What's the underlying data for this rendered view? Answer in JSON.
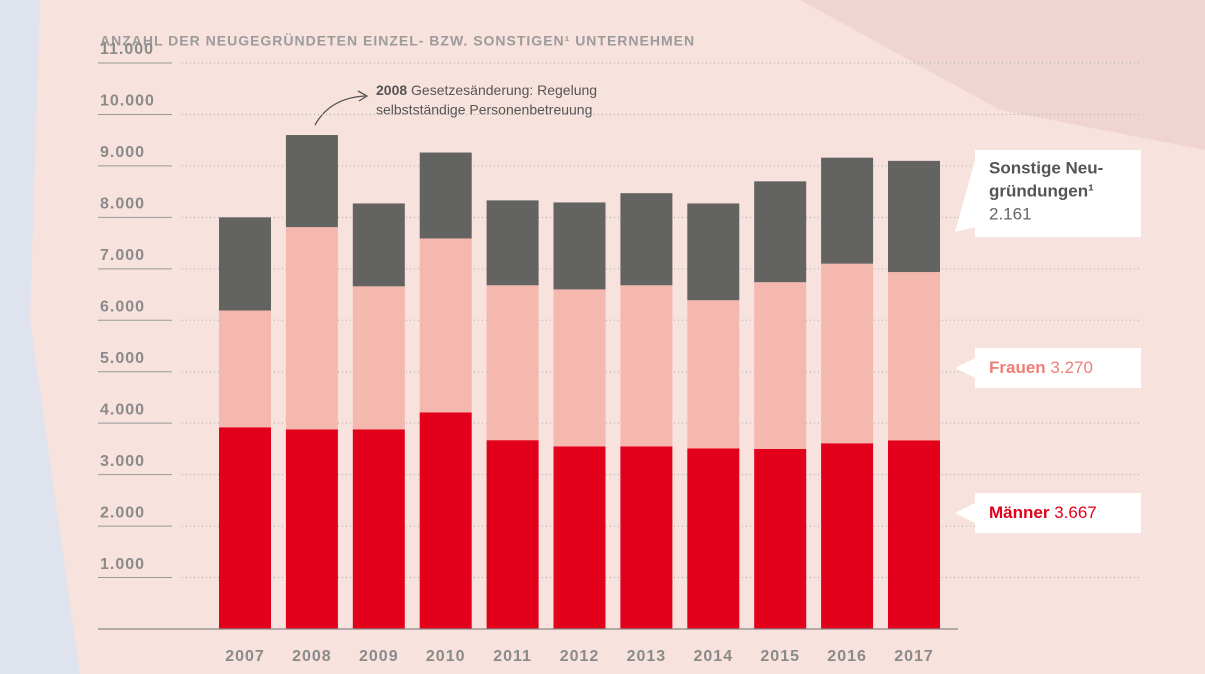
{
  "chart_data": {
    "type": "stacked-bar",
    "title": "ANZAHL DER NEUGEGRÜNDETEN EINZEL- BZW. SONSTIGEN¹ UNTERNEHMEN",
    "annotation": {
      "year": "2008",
      "lines": [
        "Gesetzesänderung: Regelung",
        "selbstständige Personenbetreuung"
      ]
    },
    "categories": [
      "2007",
      "2008",
      "2009",
      "2010",
      "2011",
      "2012",
      "2013",
      "2014",
      "2015",
      "2016",
      "2017"
    ],
    "series": [
      {
        "name": "Männer",
        "color": "#e2001a",
        "label_color": "#e2001a",
        "values": [
          3920,
          3880,
          3880,
          4210,
          3670,
          3550,
          3550,
          3510,
          3500,
          3610,
          3667
        ],
        "value_labels": [
          null,
          null,
          null,
          null,
          null,
          null,
          null,
          null,
          null,
          null,
          "3.667"
        ]
      },
      {
        "name": "Frauen",
        "color": "#f5b8ae",
        "label_color": "#ee7f78",
        "values": [
          2270,
          3930,
          2780,
          3380,
          3010,
          3050,
          3130,
          2880,
          3240,
          3490,
          3270
        ],
        "value_labels": [
          null,
          null,
          null,
          null,
          null,
          null,
          null,
          null,
          null,
          null,
          "3.270"
        ]
      },
      {
        "name_lines": [
          "Sonstige Neu-",
          "gründungen¹"
        ],
        "color": "#636361",
        "label_color": "#555555",
        "values": [
          1810,
          1790,
          1610,
          1670,
          1650,
          1690,
          1790,
          1880,
          1960,
          2060,
          2161
        ],
        "value_labels": [
          null,
          null,
          null,
          null,
          null,
          null,
          null,
          null,
          null,
          null,
          "2.161"
        ]
      }
    ],
    "ylim": [
      0,
      11000
    ],
    "yticks": [
      {
        "value": 1000,
        "label": "1.000"
      },
      {
        "value": 2000,
        "label": "2.000"
      },
      {
        "value": 3000,
        "label": "3.000"
      },
      {
        "value": 4000,
        "label": "4.000"
      },
      {
        "value": 5000,
        "label": "5.000"
      },
      {
        "value": 6000,
        "label": "6.000"
      },
      {
        "value": 7000,
        "label": "7.000"
      },
      {
        "value": 8000,
        "label": "8.000"
      },
      {
        "value": 9000,
        "label": "9.000"
      },
      {
        "value": 10000,
        "label": "10.000"
      },
      {
        "value": 11000,
        "label": "11.000"
      }
    ],
    "grid": true
  }
}
